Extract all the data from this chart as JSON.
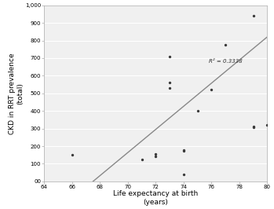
{
  "scatter_x": [
    66,
    71,
    72,
    72,
    73,
    73,
    73,
    74,
    74,
    74,
    75,
    76,
    77,
    79,
    79,
    79,
    80
  ],
  "scatter_y": [
    150,
    125,
    140,
    155,
    560,
    530,
    710,
    40,
    175,
    180,
    400,
    520,
    775,
    940,
    310,
    305,
    320
  ],
  "trendline_x": [
    67.5,
    80
  ],
  "trendline_y": [
    0,
    820
  ],
  "r2_text": "R² = 0.3338",
  "r2_x": 75.8,
  "r2_y": 670,
  "xlabel": "Life expectancy at birth\n(years)",
  "ylabel": "CKD in RRT prevalence\n(total)",
  "xlim": [
    64,
    80
  ],
  "ylim": [
    0,
    1000
  ],
  "xticks": [
    64,
    66,
    68,
    70,
    72,
    74,
    76,
    78,
    80
  ],
  "yticks": [
    0,
    100,
    200,
    300,
    400,
    500,
    600,
    700,
    800,
    900,
    1000
  ],
  "ytick_labels": [
    "00",
    "100",
    "200",
    "300",
    "400",
    "500",
    "600",
    "700",
    "800",
    "900",
    "1,000"
  ],
  "marker_color": "#3a3a3a",
  "line_color": "#888888",
  "plot_bg_color": "#f0f0f0",
  "fig_bg_color": "#ffffff",
  "grid_color": "#ffffff",
  "marker_size": 8,
  "border_color": "#aaaaaa"
}
